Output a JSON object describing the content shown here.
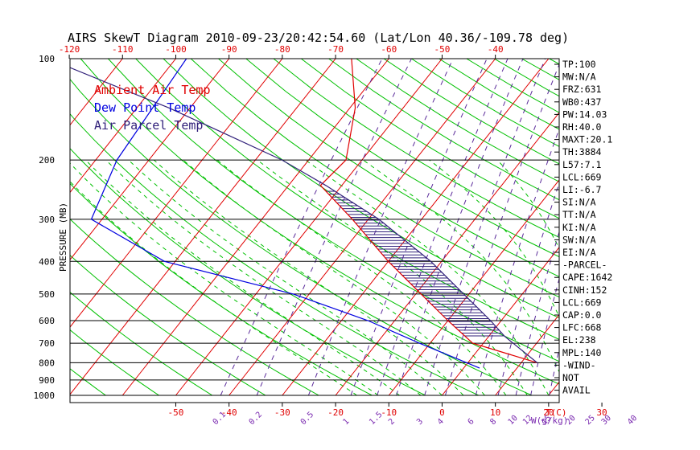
{
  "title": "AIRS SkewT Diagram 2010-09-23/20:42:54.60 (Lat/Lon 40.36/-109.78 deg)",
  "colors": {
    "frame": "#000000",
    "isotherm": "#e00000",
    "dry_adiabat": "#00c000",
    "moist_adiabat": "#00c000",
    "mixing_ratio": "#5a2a9a",
    "ambient": "#e00000",
    "dewpoint": "#0000e0",
    "parcel": "#30207a",
    "cape_hatch": "#30207a",
    "top_axis": "#e00000",
    "bottom_axis": "#e00000",
    "mixing_axis": "#7a2ab0"
  },
  "chart_data": {
    "type": "line",
    "title": "AIRS SkewT Diagram 2010-09-23/20:42:54.60 (Lat/Lon 40.36/-109.78 deg)",
    "ylabel": "PRESSURE (MB)",
    "xlabel": "T(C)",
    "mixing_label": "W(g/kg)",
    "y_scale": "log",
    "ylim": [
      1000,
      100
    ],
    "pressure_ticks": [
      100,
      200,
      300,
      400,
      500,
      600,
      700,
      800,
      900,
      1000
    ],
    "top_temp_ticks": [
      -120,
      -110,
      -100,
      -90,
      -80,
      -70,
      -60,
      -50,
      -40
    ],
    "bottom_temp_ticks": [
      -50,
      -40,
      -30,
      -20,
      -10,
      0,
      10,
      20,
      30
    ],
    "mixing_ratio_ticks": [
      "0.1",
      "0.2",
      "0.5",
      "1",
      "1.5",
      "2",
      "3",
      "4",
      "6",
      "8",
      "10",
      "12",
      "15",
      "20",
      "25",
      "30",
      "40"
    ],
    "legend": [
      "Ambient Air Temp",
      "Dew Point Temp",
      "Air Parcel Temp"
    ],
    "series": [
      {
        "name": "Ambient Air Temp",
        "points": [
          {
            "p": 100,
            "t": -67
          },
          {
            "p": 140,
            "t": -59
          },
          {
            "p": 200,
            "t": -53
          },
          {
            "p": 238,
            "t": -54
          },
          {
            "p": 300,
            "t": -43
          },
          {
            "p": 400,
            "t": -30
          },
          {
            "p": 500,
            "t": -19
          },
          {
            "p": 600,
            "t": -10
          },
          {
            "p": 700,
            "t": -2
          },
          {
            "p": 800,
            "t": 13
          }
        ]
      },
      {
        "name": "Dew Point Temp",
        "points": [
          {
            "p": 100,
            "t": -98
          },
          {
            "p": 200,
            "t": -96
          },
          {
            "p": 300,
            "t": -92
          },
          {
            "p": 400,
            "t": -72
          },
          {
            "p": 500,
            "t": -43
          },
          {
            "p": 600,
            "t": -25
          },
          {
            "p": 700,
            "t": -12
          },
          {
            "p": 830,
            "t": 3
          }
        ]
      },
      {
        "name": "Air Parcel Temp",
        "points": [
          {
            "p": 100,
            "t": -124
          },
          {
            "p": 140,
            "t": -94
          },
          {
            "p": 200,
            "t": -65
          },
          {
            "p": 238,
            "t": -53
          },
          {
            "p": 300,
            "t": -38
          },
          {
            "p": 400,
            "t": -22
          },
          {
            "p": 500,
            "t": -11
          },
          {
            "p": 600,
            "t": -2
          },
          {
            "p": 668,
            "t": 3
          },
          {
            "p": 800,
            "t": 13
          }
        ]
      }
    ],
    "right_panel": [
      "TP:100",
      "MW:N/A",
      "FRZ:631",
      "WB0:437",
      "PW:14.03",
      "RH:40.0",
      "MAXT:20.1",
      "TH:3884",
      "L57:7.1",
      "LCL:669",
      "LI:-6.7",
      "SI:N/A",
      "TT:N/A",
      "KI:N/A",
      "SW:N/A",
      "EI:N/A",
      "-PARCEL-",
      "CAPE:1642",
      "CINH:152",
      "LCL:669",
      "CAP:0.0",
      "LFC:668",
      "EL:238",
      "MPL:140",
      "-WIND-",
      "NOT",
      "AVAIL"
    ]
  }
}
